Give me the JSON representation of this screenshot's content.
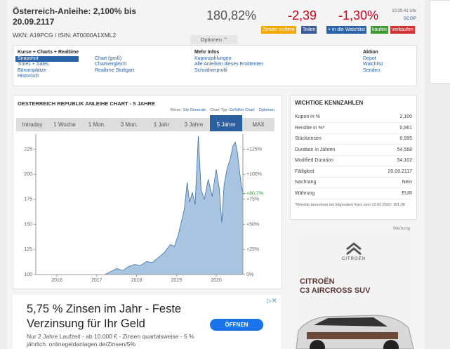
{
  "header": {
    "title": "Österreich-Anleihe: 2,100% bis 20.09.2117",
    "ids": "WKN: A19PCG / ISIN: AT0000A1XML2",
    "price": "180,82%",
    "change": "-2,39",
    "change_pct": "-1,30%",
    "time": "10:29:41 Uhr",
    "exchange": "SCGP",
    "buttons": [
      "Zinsen sichern",
      "Teilen",
      "+ in die Watchlist",
      "kaufen",
      "verkaufen"
    ],
    "button_colors": [
      "#f5a800",
      "#3b5998",
      "#2a62a8",
      "#3c9a2f",
      "#d23232"
    ],
    "options": "Optionen"
  },
  "nav": {
    "columns": [
      {
        "title": "Kurse + Charts + Realtime",
        "items": [
          "Snapshot",
          "Times + Sales",
          "Börsenplätze",
          "Historisch"
        ]
      },
      {
        "items": [
          "Chart (groß)",
          "Chartvergleich",
          "Realtime Stuttgart"
        ]
      },
      {
        "title": "Mehr Infos",
        "items": [
          "Kuponzahlungen",
          "Alle Anleihen dieses Emittenten",
          "Schuldnerprofil"
        ]
      },
      {
        "title": "Aktion",
        "items": [
          "Depot",
          "Watchlist",
          "Senden"
        ]
      }
    ],
    "active_item": "Snapshot"
  },
  "chart": {
    "title": "OESTERREICH REPUBLIK ANLEIHE CHART - 5 JAHRE",
    "info": [
      "Börse:",
      "Ste Generale",
      "Chart-Typ:",
      "Gefüllter Chart",
      "Optionen"
    ],
    "tabs": [
      "Intraday",
      "1 Woche",
      "1 Mon.",
      "3 Mon.",
      "1 Jahr",
      "3 Jahre",
      "5 Jahre",
      "MAX"
    ],
    "active_tab": "5 Jahre",
    "chart_data": {
      "type": "area",
      "color": "#a9c4e0",
      "line_color": "#3d6fa8",
      "x": [
        2017.2,
        2017.35,
        2017.5,
        2017.65,
        2017.8,
        2017.95,
        2018.1,
        2018.25,
        2018.4,
        2018.55,
        2018.7,
        2018.85,
        2018.95,
        2019.05,
        2019.12,
        2019.2,
        2019.27,
        2019.33,
        2019.4,
        2019.47,
        2019.55,
        2019.62,
        2019.7,
        2019.8,
        2019.9,
        2020.0,
        2020.08,
        2020.14,
        2020.2,
        2020.27,
        2020.35,
        2020.42,
        2020.48,
        2020.53,
        2020.58,
        2020.63,
        2020.67
      ],
      "values": [
        100,
        103,
        106,
        104,
        108,
        110,
        109,
        113,
        112,
        117,
        122,
        130,
        128,
        140,
        152,
        165,
        192,
        172,
        182,
        170,
        238,
        185,
        175,
        195,
        178,
        205,
        185,
        152,
        190,
        205,
        215,
        228,
        232,
        222,
        205,
        190,
        181
      ],
      "xlim": [
        2015.47,
        2020.67
      ],
      "ylim": [
        100,
        240
      ],
      "xticks": [
        2016,
        2017,
        2018,
        2019,
        2020
      ],
      "yticks": [
        100,
        125,
        150,
        175,
        200,
        225
      ],
      "y2lim": [
        0,
        140
      ],
      "y2ticks": [
        {
          "value": 0,
          "label": "0%"
        },
        {
          "value": 25,
          "label": "+25%"
        },
        {
          "value": 50,
          "label": "+50%"
        },
        {
          "value": 75,
          "label": "+75%"
        },
        {
          "value": 100,
          "label": "+100%"
        },
        {
          "value": 125,
          "label": "+125%"
        }
      ],
      "current": {
        "value": 80.7,
        "label": "+80,7%",
        "color": "#2e9e3a"
      }
    }
  },
  "kennzahlen": {
    "title": "WICHTIGE KENNZAHLEN",
    "rows": [
      [
        "Kupon in %",
        "2,100"
      ],
      [
        "Rendite in %*",
        "0,861"
      ],
      [
        "Stückzinsen",
        "0,995"
      ],
      [
        "Duration in Jahren",
        "54,568"
      ],
      [
        "Modified Duration",
        "54,102"
      ],
      [
        "Fälligkeit",
        "20.09.2117"
      ],
      [
        "Nachrang",
        "Nein"
      ],
      [
        "Währung",
        "EUR"
      ]
    ],
    "note": "*Rendite berechnet mit folgendem Kurs vom 12.03.2021: 181,08"
  },
  "ad_side": {
    "label": "Werbung",
    "brand": "CITROËN",
    "headline1": "CITROËN",
    "headline2": "C3 AIRCROSS SUV"
  },
  "ad_bottom": {
    "headline": "5,75 % Zinsen im Jahr - Feste Verzinsung für Ihr Geld",
    "text": "Nur 2 Jahre Laufzeit - ab 10.000 € - Zinsen quartalsweise - 5 % jährlich. onlinegeldanlagen.de/Zinsen/5%",
    "button": "ÖFFNEN"
  }
}
